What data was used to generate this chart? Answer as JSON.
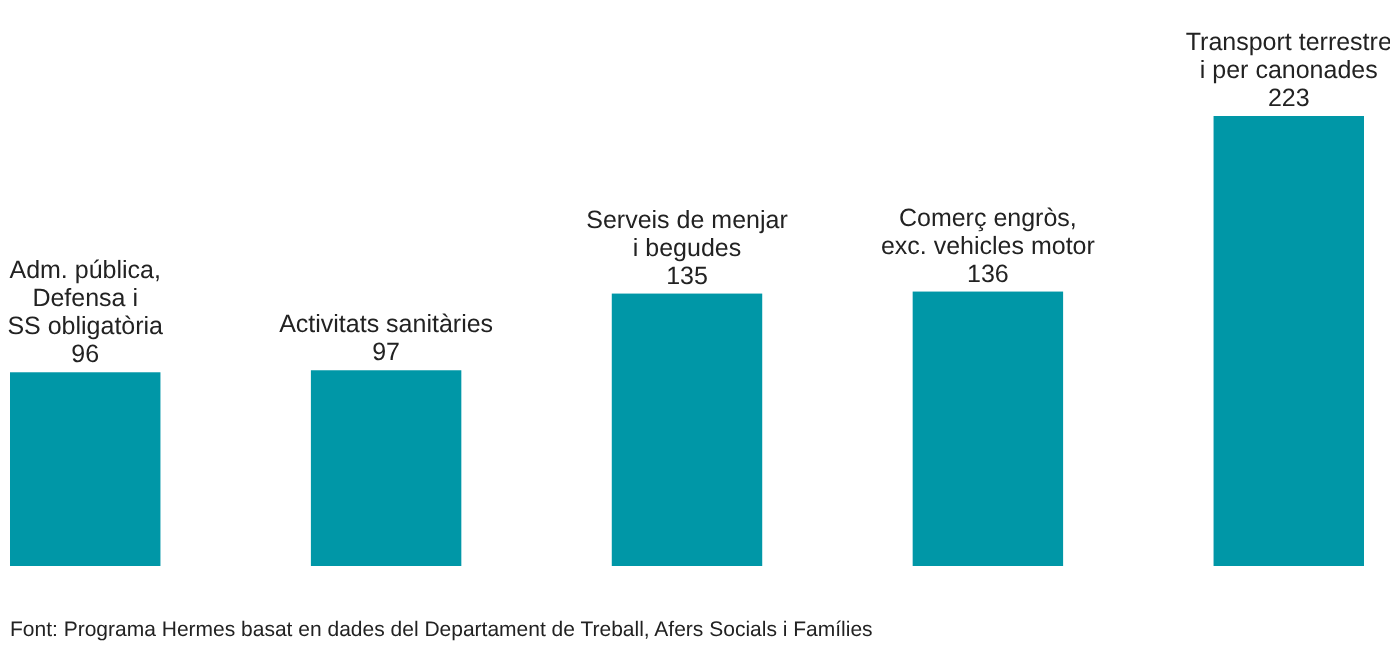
{
  "chart_data": {
    "type": "bar",
    "categories": [
      "Adm. pública,\nDefensa i\nSS obligatòria",
      "Activitats sanitàries",
      "Serveis de menjar\ni begudes",
      "Comerç engròs,\nexc. vehicles motor",
      "Transport terrestre\ni per canonades"
    ],
    "values": [
      96,
      97,
      135,
      136,
      223
    ],
    "color": "#0097a7",
    "data_labels": true,
    "annotations": [
      "Font: Programa Hermes basat en dades del Departament de Treball, Afers Socials i Famílies"
    ]
  }
}
